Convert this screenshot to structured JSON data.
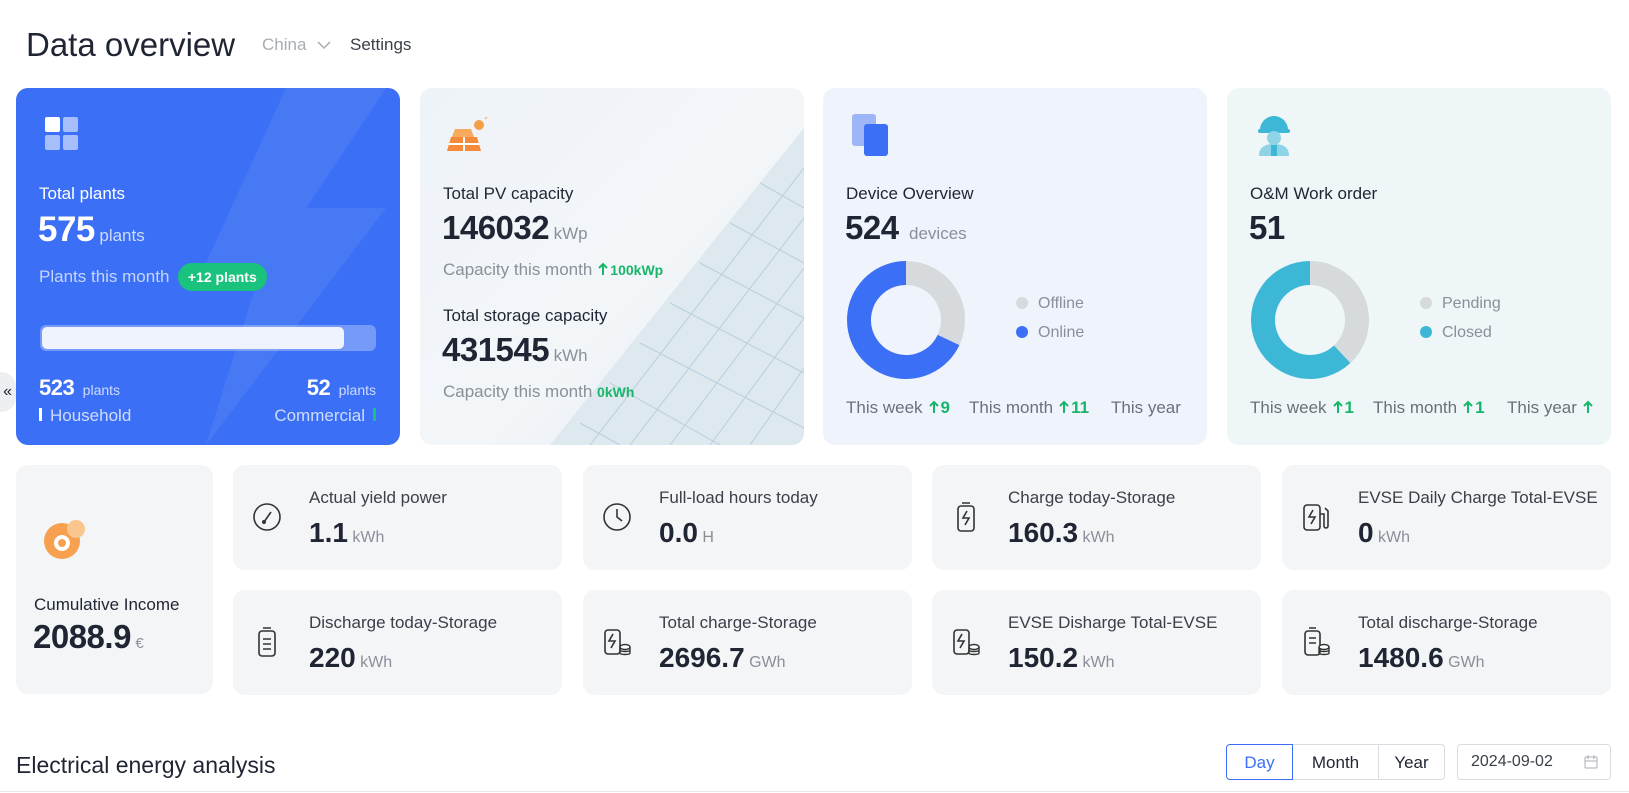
{
  "header": {
    "title": "Data overview",
    "region": "China",
    "settings": "Settings"
  },
  "collapse": "«",
  "plants": {
    "label": "Total plants",
    "value": 575,
    "unit": "plants",
    "month_label": "Plants this month",
    "month_badge": "+12 plants",
    "household": {
      "value": 523,
      "unit": "plants",
      "label": "Household"
    },
    "commercial": {
      "value": 52,
      "unit": "plants",
      "label": "Commercial"
    }
  },
  "capacity": {
    "pv": {
      "label": "Total PV capacity",
      "value": 146032,
      "unit": "kWp",
      "month_label": "Capacity this month",
      "month_value": "100kWp"
    },
    "storage": {
      "label": "Total storage capacity",
      "value": 431545,
      "unit": "kWh",
      "month_label": "Capacity this month",
      "month_value": "0kWh"
    }
  },
  "devices": {
    "label": "Device Overview",
    "value": 524,
    "unit": "devices",
    "chart": {
      "type": "pie",
      "series": [
        {
          "name": "Offline",
          "color": "#d6dadd",
          "value": 32
        },
        {
          "name": "Online",
          "color": "#3b6ff5",
          "value": 68
        }
      ]
    },
    "footer": [
      {
        "label": "This week",
        "value": 9
      },
      {
        "label": "This month",
        "value": 11
      },
      {
        "label": "This year"
      }
    ]
  },
  "work_orders": {
    "label": "O&M Work order",
    "value": 51,
    "chart": {
      "type": "pie",
      "series": [
        {
          "name": "Pending",
          "color": "#d6dadd",
          "value": 38
        },
        {
          "name": "Closed",
          "color": "#3db7d6",
          "value": 62
        }
      ]
    },
    "footer": [
      {
        "label": "This week",
        "value": 1
      },
      {
        "label": "This month",
        "value": 1
      },
      {
        "label": "This year"
      }
    ]
  },
  "income": {
    "label": "Cumulative Income",
    "value": 2088.9,
    "unit": "€"
  },
  "metrics": [
    {
      "label": "Actual yield power",
      "value": "1.1",
      "unit": "kWh"
    },
    {
      "label": "Full-load hours today",
      "value": "0.0",
      "unit": "H"
    },
    {
      "label": "Charge today-Storage",
      "value": "160.3",
      "unit": "kWh"
    },
    {
      "label": "EVSE Daily Charge Total-EVSE",
      "value": "0",
      "unit": "kWh"
    },
    {
      "label": "Discharge today-Storage",
      "value": "220",
      "unit": "kWh"
    },
    {
      "label": "Total charge-Storage",
      "value": "2696.7",
      "unit": "GWh"
    },
    {
      "label": "EVSE Disharge Total-EVSE",
      "value": "150.2",
      "unit": "kWh"
    },
    {
      "label": "Total discharge-Storage",
      "value": "1480.6",
      "unit": "GWh"
    }
  ],
  "section": {
    "title": "Electrical energy analysis",
    "tabs": [
      "Day",
      "Month",
      "Year"
    ],
    "active_tab": 0,
    "date": "2024-09-02"
  }
}
